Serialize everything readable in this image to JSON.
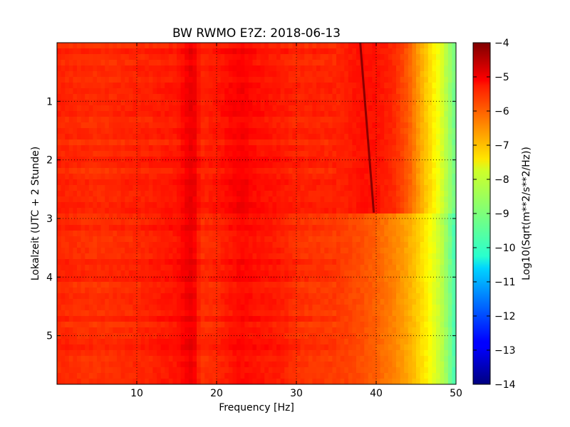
{
  "chart_data": {
    "type": "heatmap",
    "title": "BW RWMO E?Z: 2018-06-13",
    "xlabel": "Frequency [Hz]",
    "ylabel": "Lokalzeit (UTC + 2 Stunde)",
    "colorbar_label": "Log10(Sqrt(m**2/s**2/Hz))",
    "xlim": [
      0,
      50
    ],
    "ylim": [
      0,
      5.83
    ],
    "y_inverted": true,
    "x_ticks": [
      10,
      20,
      30,
      40,
      50
    ],
    "x_tick_labels": [
      "10",
      "20",
      "30",
      "40",
      "50"
    ],
    "y_ticks": [
      1,
      2,
      3,
      4,
      5
    ],
    "y_tick_labels": [
      "1",
      "2",
      "3",
      "4",
      "5"
    ],
    "clim": [
      -14,
      -4
    ],
    "colorbar_ticks": [
      -4,
      -5,
      -6,
      -7,
      -8,
      -9,
      -10,
      -11,
      -12,
      -13,
      -14
    ],
    "colorbar_tick_labels": [
      "−4",
      "−5",
      "−6",
      "−7",
      "−8",
      "−9",
      "−10",
      "−11",
      "−12",
      "−13",
      "−14"
    ],
    "colormap": "jet",
    "grid": true,
    "frequency_profile_before_3h": {
      "x": [
        0,
        5,
        10,
        15,
        17,
        18,
        20,
        23,
        25,
        28,
        30,
        35,
        38,
        40,
        42,
        44,
        45,
        46,
        47,
        48,
        49,
        50
      ],
      "values": [
        -5.6,
        -5.7,
        -5.6,
        -5.5,
        -5.0,
        -5.6,
        -5.5,
        -5.2,
        -5.4,
        -5.5,
        -5.6,
        -5.6,
        -5.4,
        -5.4,
        -5.6,
        -6.1,
        -6.6,
        -7.1,
        -7.5,
        -8.0,
        -8.6,
        -9.2
      ]
    },
    "frequency_profile_after_3h": {
      "x": [
        0,
        5,
        10,
        15,
        17,
        18,
        20,
        23,
        25,
        28,
        30,
        35,
        38,
        40,
        42,
        44,
        45,
        46,
        47,
        48,
        49,
        50
      ],
      "values": [
        -5.6,
        -5.7,
        -5.6,
        -5.4,
        -5.0,
        -5.7,
        -5.6,
        -5.3,
        -5.4,
        -5.5,
        -5.7,
        -5.8,
        -6.0,
        -6.2,
        -6.5,
        -6.9,
        -7.2,
        -7.5,
        -7.9,
        -8.3,
        -8.9,
        -9.6
      ]
    },
    "regime_change_time": 2.92,
    "drifting_line": {
      "start": {
        "x": 38.0,
        "y": 0.0
      },
      "end": {
        "x": 39.7,
        "y": 2.9
      },
      "value": -4.7
    }
  }
}
